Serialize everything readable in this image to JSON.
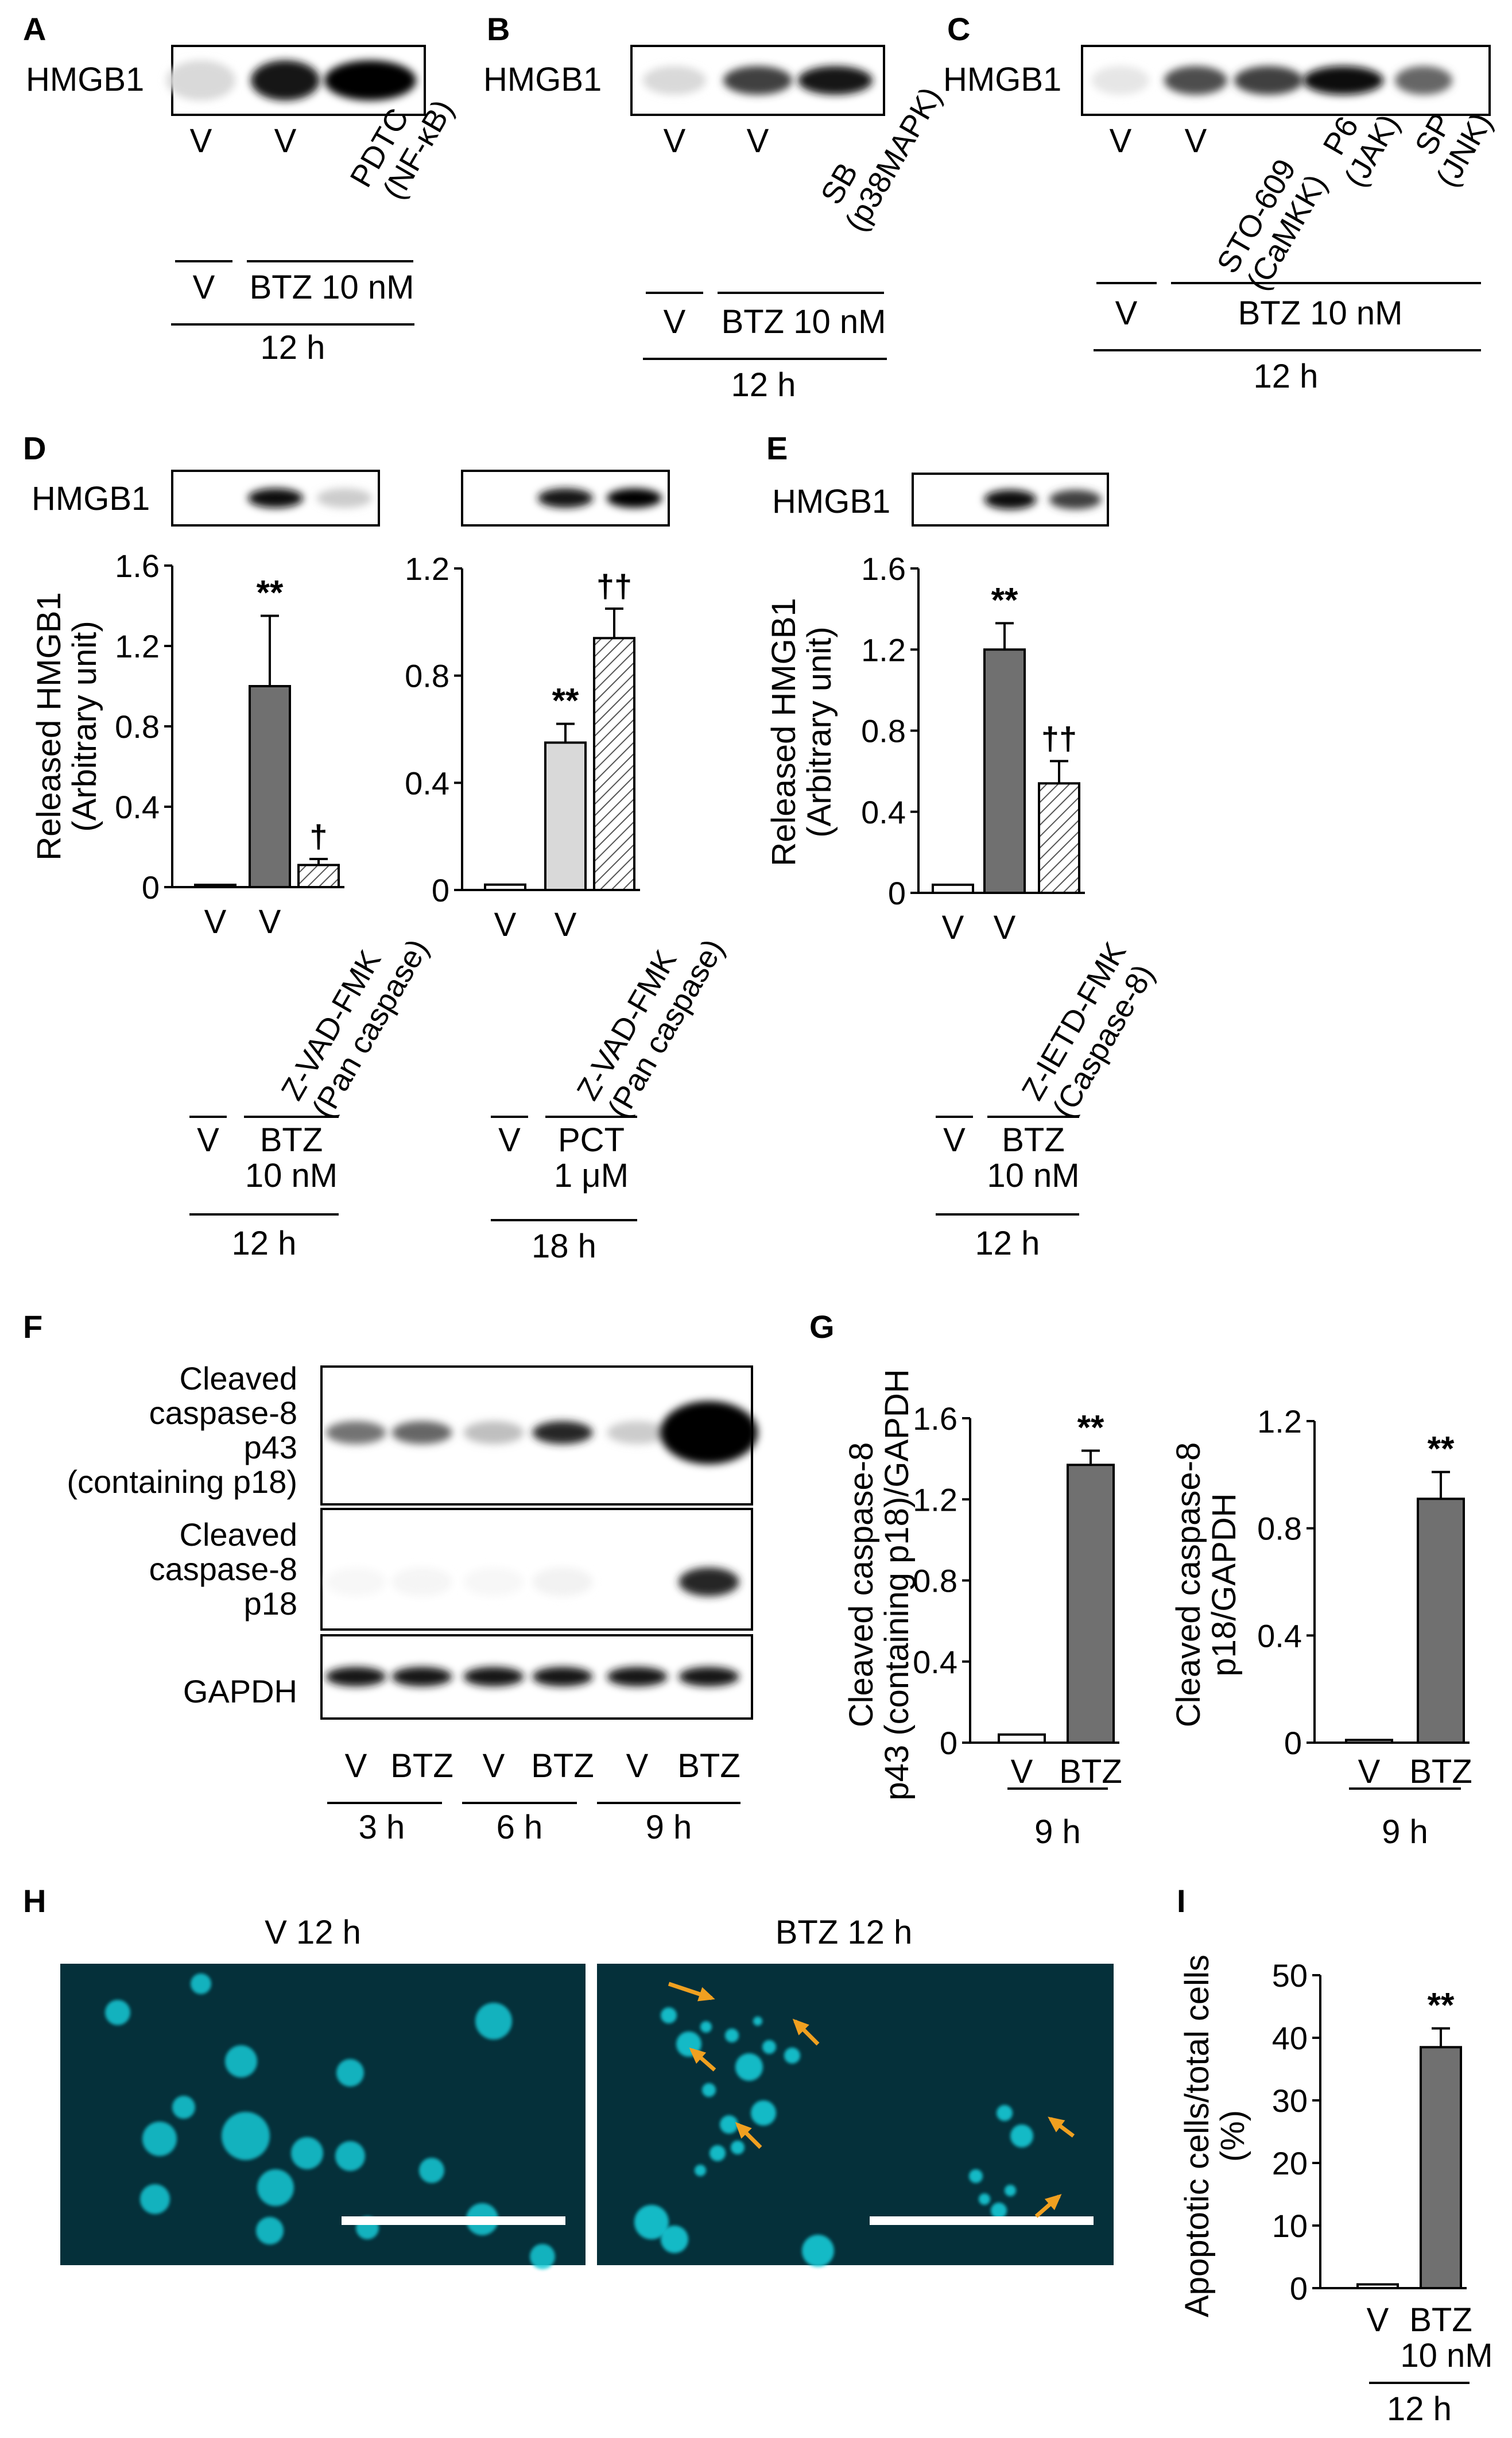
{
  "panel_letters": [
    "A",
    "B",
    "C",
    "D",
    "E",
    "F",
    "G",
    "H",
    "I"
  ],
  "blots": {
    "A": {
      "label": "HMGB1",
      "lanes": [
        "V",
        "V",
        "PDTC\n(NF-κB)"
      ],
      "intensity": [
        0.15,
        0.9,
        1.0
      ],
      "treat_left": "V",
      "treat_right": "BTZ 10 nM",
      "time": "12 h"
    },
    "B": {
      "label": "HMGB1",
      "lanes": [
        "V",
        "V",
        "SB\n(p38MAPK)"
      ],
      "intensity": [
        0.15,
        0.75,
        0.9
      ],
      "treat_left": "V",
      "treat_right": "BTZ 10 nM",
      "time": "12 h"
    },
    "C": {
      "label": "HMGB1",
      "lanes": [
        "V",
        "V",
        "STO-609\n(CaMKK)",
        "P6\n(JAK)",
        "SP\n(JNK)"
      ],
      "intensity": [
        0.1,
        0.7,
        0.75,
        0.95,
        0.6
      ],
      "treat_left": "V",
      "treat_right": "BTZ 10 nM",
      "time": "12 h"
    }
  },
  "icons": {
    "arrow": "orange-arrow-icon",
    "scale": "scale-bar-icon"
  },
  "colors": {
    "dark_bar": "#707070",
    "light_bar": "#d9d9d9",
    "hatch_bar": "#ffffff",
    "nuclei": "#19c9d6",
    "micro_bg": "#05303a",
    "arrow": "#f0a020"
  },
  "chart_data": [
    {
      "panel": "D",
      "type": "bar",
      "blot_label": "HMGB1",
      "blot_intensity": [
        0.0,
        0.95,
        0.2
      ],
      "ylabel": "Released HMGB1\n(Arbitrary unit)",
      "ylim": [
        0,
        1.6
      ],
      "yticks": [
        "0",
        "0.4",
        "0.8",
        "1.2",
        "1.6"
      ],
      "categories": [
        "V",
        "V",
        "Z-VAD-FMK\n(Pan caspase)"
      ],
      "values": [
        0.01,
        1.0,
        0.11
      ],
      "errors": [
        0,
        0.35,
        0.03
      ],
      "styles": [
        "white",
        "dark",
        "hatch"
      ],
      "annotations": [
        "",
        "**",
        "†"
      ],
      "treat_left": "V",
      "treat_right": "BTZ\n10 nM",
      "time": "12 h"
    },
    {
      "panel": "D",
      "type": "bar",
      "blot_label": "",
      "blot_intensity": [
        0.0,
        0.9,
        1.0
      ],
      "ylabel": "",
      "ylim": [
        0,
        1.2
      ],
      "yticks": [
        "0",
        "0.4",
        "0.8",
        "1.2"
      ],
      "categories": [
        "V",
        "V",
        "Z-VAD-FMK\n(Pan caspase)"
      ],
      "values": [
        0.02,
        0.55,
        0.94
      ],
      "errors": [
        0,
        0.07,
        0.11
      ],
      "styles": [
        "white",
        "light",
        "hatch"
      ],
      "annotations": [
        "",
        "**",
        "††"
      ],
      "treat_left": "V",
      "treat_right": "PCT\n1 μM",
      "time": "18 h"
    },
    {
      "panel": "E",
      "type": "bar",
      "blot_label": "HMGB1",
      "blot_intensity": [
        0.0,
        0.95,
        0.75
      ],
      "ylabel": "Released HMGB1\n(Arbitrary unit)",
      "ylim": [
        0,
        1.6
      ],
      "yticks": [
        "0",
        "0.4",
        "0.8",
        "1.2",
        "1.6"
      ],
      "categories": [
        "V",
        "V",
        "Z-IETD-FMK\n(Caspase-8)"
      ],
      "values": [
        0.04,
        1.2,
        0.54
      ],
      "errors": [
        0,
        0.13,
        0.11
      ],
      "styles": [
        "white",
        "dark",
        "hatch"
      ],
      "annotations": [
        "",
        "**",
        "††"
      ],
      "treat_left": "V",
      "treat_right": "BTZ\n10 nM",
      "time": "12 h"
    },
    {
      "panel": "F",
      "type": "table",
      "rows": [
        "Cleaved\ncaspase-8\np43\n(containing p18)",
        "Cleaved\ncaspase-8\np18",
        "GAPDH"
      ],
      "lanes": [
        "V",
        "BTZ",
        "V",
        "BTZ",
        "V",
        "BTZ"
      ],
      "times": [
        "3 h",
        "6 h",
        "9 h"
      ],
      "intensity": [
        [
          0.55,
          0.6,
          0.25,
          0.85,
          0.2,
          1.0
        ],
        [
          0.03,
          0.04,
          0.03,
          0.05,
          0.02,
          0.85
        ],
        [
          0.9,
          0.9,
          0.9,
          0.9,
          0.9,
          0.9
        ]
      ]
    },
    {
      "panel": "G",
      "type": "bar",
      "ylabel": "Cleaved caspase-8\np43 (containing p18)/GAPDH",
      "ylim": [
        0,
        1.6
      ],
      "yticks": [
        "0",
        "0.4",
        "0.8",
        "1.2",
        "1.6"
      ],
      "categories": [
        "V",
        "BTZ"
      ],
      "values": [
        0.04,
        1.37
      ],
      "errors": [
        0,
        0.07
      ],
      "styles": [
        "white",
        "dark"
      ],
      "annotations": [
        "",
        "**"
      ],
      "time": "9 h"
    },
    {
      "panel": "G",
      "type": "bar",
      "ylabel": "Cleaved caspase-8\np18/GAPDH",
      "ylim": [
        0,
        1.2
      ],
      "yticks": [
        "0",
        "0.4",
        "0.8",
        "1.2"
      ],
      "categories": [
        "V",
        "BTZ"
      ],
      "values": [
        0.01,
        0.91
      ],
      "errors": [
        0,
        0.1
      ],
      "styles": [
        "white",
        "dark"
      ],
      "annotations": [
        "",
        "**"
      ],
      "time": "9 h"
    },
    {
      "panel": "H",
      "type": "image",
      "titles": [
        "V 12 h",
        "BTZ 12 h"
      ]
    },
    {
      "panel": "I",
      "type": "bar",
      "ylabel": "Apoptotic cells/total cells\n(%)",
      "ylim": [
        0,
        50
      ],
      "yticks": [
        "0",
        "10",
        "20",
        "30",
        "40",
        "50"
      ],
      "categories": [
        "V",
        "BTZ\n10 nM"
      ],
      "values": [
        0.6,
        38.5
      ],
      "errors": [
        0,
        3.0
      ],
      "styles": [
        "white",
        "dark"
      ],
      "annotations": [
        "",
        "**"
      ],
      "time": "12 h"
    }
  ]
}
